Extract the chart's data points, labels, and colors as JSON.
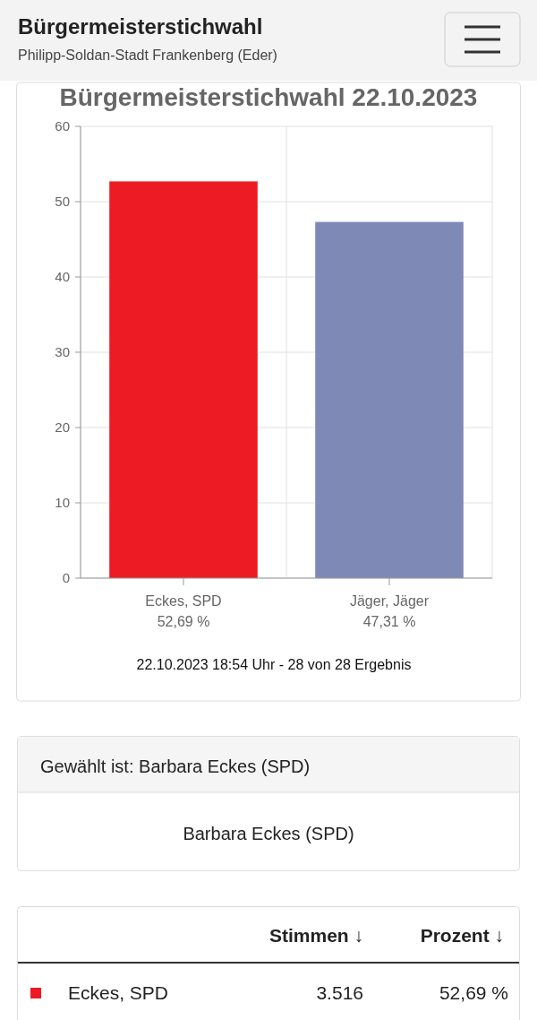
{
  "chart_data": {
    "type": "bar",
    "title": "Bürgermeisterstichwahl 22.10.2023",
    "categories": [
      "Eckes, SPD",
      "Jäger, Jäger"
    ],
    "values": [
      52.69,
      47.31
    ],
    "colors": [
      "#ed1c24",
      "#7f89b5"
    ],
    "value_labels": [
      "52,69 %",
      "47,31 %"
    ],
    "ylim": [
      0,
      60
    ],
    "yticks": [
      0,
      10,
      20,
      30,
      40,
      50,
      60
    ],
    "grid": true,
    "annotations": [
      "22.10.2023 18:54 Uhr - 28 von 28 Ergebnis",
      "Bürgermeisterstichwahl",
      "Philipp-Soldan-Stadt Frankenberg (Eder)",
      "Gewählt ist: Barbara Eckes (SPD)",
      "Barbara Eckes (SPD)",
      "Stimmen ↓",
      "Prozent ↓",
      "Eckes, SPD",
      "3.516",
      "52,69 %"
    ]
  }
}
